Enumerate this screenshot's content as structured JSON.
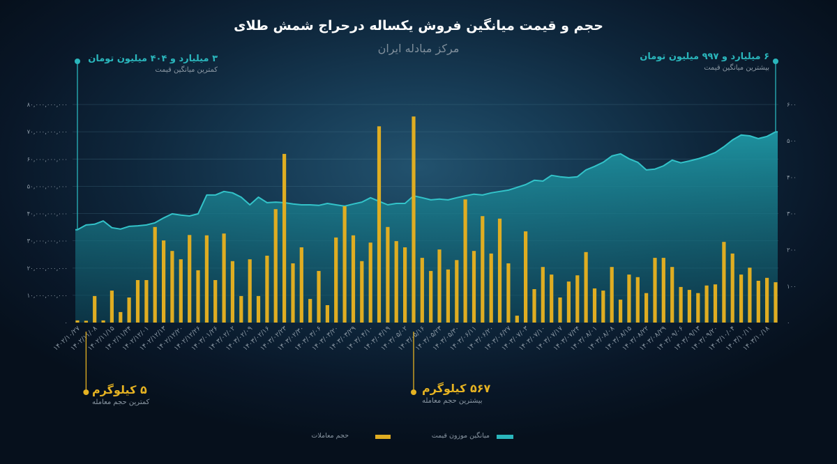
{
  "chart_data": {
    "type": "bar",
    "title": "حجم و قیمت میانگین فروش یکساله درحراج شمش طلای",
    "subtitle": "مرکز مبادله ایران",
    "categories": [
      "۱۴۰۲/۱۰/۲۷",
      "",
      "۱۴۰۲/۱۱/۰۸",
      "",
      "۱۴۰۲/۱۱/۱۵",
      "",
      "۱۴۰۲/۱۱/۲۴",
      "",
      "۱۴۰۲/۱۲/۰۱",
      "",
      "۱۴۰۲/۱۲/۱۳",
      "",
      "۱۴۰۲/۱۲/۲۰",
      "",
      "۱۴۰۲/۱۲/۲۶",
      "",
      "۱۴۰۳/۰۱/۲۶",
      "",
      "۱۴۰۳/۰۲/۰۲",
      "",
      "۱۴۰۳/۰۲/۰۹",
      "",
      "۱۴۰۳/۰۲/۱۶",
      "",
      "۱۴۰۳/۰۲/۲۳",
      "",
      "۱۴۰۳/۰۲/۳۰",
      "",
      "۱۴۰۳/۰۳/۰۶",
      "",
      "۱۴۰۳/۰۳/۲۰",
      "",
      "۱۴۰۳/۰۳/۲۹",
      "",
      "۱۴۰۳/۰۴/۱۰",
      "",
      "۱۴۰۳/۰۴/۱۹",
      "",
      "۱۴۰۳/۰۵/۰۲",
      "",
      "۱۴۰۳/۰۵/۱۶",
      "",
      "۱۴۰۳/۰۵/۲۳",
      "",
      "۱۴۰۳/۰۵/۳۰",
      "",
      "۱۴۰۳/۰۶/۱۱",
      "",
      "۱۴۰۳/۰۶/۲۰",
      "",
      "۱۴۰۳/۰۶/۲۷",
      "",
      "۱۴۰۳/۰۷/۰۳",
      "",
      "۱۴۰۳/۰۷/۱۰",
      "",
      "۱۴۰۳/۰۷/۱۷",
      "",
      "۱۴۰۳/۰۷/۲۴",
      "",
      "۱۴۰۳/۰۸/۰۱",
      "",
      "۱۴۰۳/۰۸/۰۸",
      "",
      "۱۴۰۳/۰۸/۱۵",
      "",
      "۱۴۰۳/۰۸/۲۲",
      "",
      "۱۴۰۳/۰۸/۲۹",
      "",
      "۱۴۰۳/۰۹/۰۶",
      "",
      "۱۴۰۳/۰۹/۱۳",
      "",
      "۱۴۰۳/۰۹/۲۰",
      "",
      "۱۴۰۳/۱۰/۰۴",
      "",
      "۱۴۰۳/۱۰/۱۱",
      "",
      "۱۴۰۳/۱۰/۱۸",
      ""
    ],
    "series": [
      {
        "name": "حجم معاملات",
        "type": "bar",
        "axis": "right",
        "values": [
          6,
          5,
          73,
          6,
          88,
          29,
          69,
          117,
          117,
          263,
          226,
          197,
          174,
          241,
          144,
          240,
          117,
          245,
          169,
          73,
          174,
          73,
          184,
          312,
          464,
          163,
          207,
          65,
          142,
          48,
          234,
          320,
          240,
          169,
          220,
          540,
          263,
          224,
          207,
          567,
          178,
          142,
          201,
          146,
          172,
          339,
          197,
          293,
          190,
          286,
          163,
          19,
          251,
          92,
          153,
          132,
          69,
          113,
          130,
          194,
          94,
          88,
          153,
          63,
          132,
          125,
          81,
          178,
          178,
          153,
          98,
          90,
          81,
          102,
          105,
          222,
          190,
          132,
          151,
          115,
          123,
          111
        ]
      },
      {
        "name": "میانگین موزون قیمت",
        "type": "area",
        "axis": "left",
        "values": [
          34040000000,
          35800000000,
          36100000000,
          37300000000,
          34800000000,
          34300000000,
          35300000000,
          35500000000,
          35800000000,
          36600000000,
          38400000000,
          39900000000,
          39400000000,
          39100000000,
          39900000000,
          46800000000,
          46800000000,
          48100000000,
          47600000000,
          46000000000,
          43200000000,
          46000000000,
          44000000000,
          44200000000,
          44000000000,
          43500000000,
          43200000000,
          43200000000,
          43000000000,
          43700000000,
          43200000000,
          42700000000,
          43500000000,
          44200000000,
          45800000000,
          44500000000,
          43200000000,
          43700000000,
          43700000000,
          46500000000,
          45800000000,
          45000000000,
          45300000000,
          45000000000,
          45800000000,
          46500000000,
          47100000000,
          46800000000,
          47600000000,
          48100000000,
          48600000000,
          49600000000,
          50600000000,
          52200000000,
          51900000000,
          54000000000,
          53500000000,
          53200000000,
          53500000000,
          56000000000,
          57300000000,
          58800000000,
          61100000000,
          61900000000,
          60100000000,
          58800000000,
          56000000000,
          56300000000,
          57500000000,
          59600000000,
          58600000000,
          59300000000,
          60100000000,
          61100000000,
          62400000000,
          64500000000,
          67000000000,
          68800000000,
          68500000000,
          67500000000,
          68300000000,
          69970000000
        ]
      }
    ],
    "y_left": {
      "range": [
        0,
        80000000000
      ],
      "ticks": [
        80000000000,
        70000000000,
        60000000000,
        50000000000,
        40000000000,
        30000000000,
        20000000000,
        10000000000,
        0
      ],
      "labels": [
        "۸۰,۰۰۰,۰۰۰,۰۰۰",
        "۷۰,۰۰۰,۰۰۰,۰۰۰",
        "۶۰,۰۰۰,۰۰۰,۰۰۰",
        "۵۰,۰۰۰,۰۰۰,۰۰۰",
        "۴۰,۰۰۰,۰۰۰,۰۰۰",
        "۳۰,۰۰۰,۰۰۰,۰۰۰",
        "۲۰,۰۰۰,۰۰۰,۰۰۰",
        "۱۰,۰۰۰,۰۰۰,۰۰۰",
        "۰"
      ]
    },
    "y_right": {
      "range": [
        0,
        600
      ],
      "ticks": [
        600,
        500,
        400,
        300,
        200,
        100,
        0
      ],
      "labels": [
        "۶۰۰",
        "۵۰۰",
        "۴۰۰",
        "۳۰۰",
        "۲۰۰",
        "۱۰۰",
        "۰"
      ]
    },
    "grid": true,
    "legend_position": "bottom",
    "annotations": {
      "min_price": {
        "value": "۳ میلیارد و ۴۰۴ میلیون تومان",
        "caption": "کمترین میانگین قیمت"
      },
      "max_price": {
        "value": "۶ میلیارد و ۹۹۷ میلیون تومان",
        "caption": "بیشترین میانگین قیمت"
      },
      "min_volume": {
        "value": "۵ کیلوگرم",
        "caption": "کمترین حجم معامله"
      },
      "max_volume": {
        "value": "۵۶۷ کیلوگرم",
        "caption": "بیشترین حجم معامله"
      }
    },
    "colors": {
      "background": "#0c2034",
      "bar": "#dfad22",
      "price_area": "#1f9eab",
      "price_area_low": "#0f4e60",
      "price_line": "#33c3c9",
      "title": "#ffffff",
      "annotation_price": "#2ab6bc",
      "annotation_volume": "#e5b222",
      "muted_text": "#8a97a3"
    }
  }
}
